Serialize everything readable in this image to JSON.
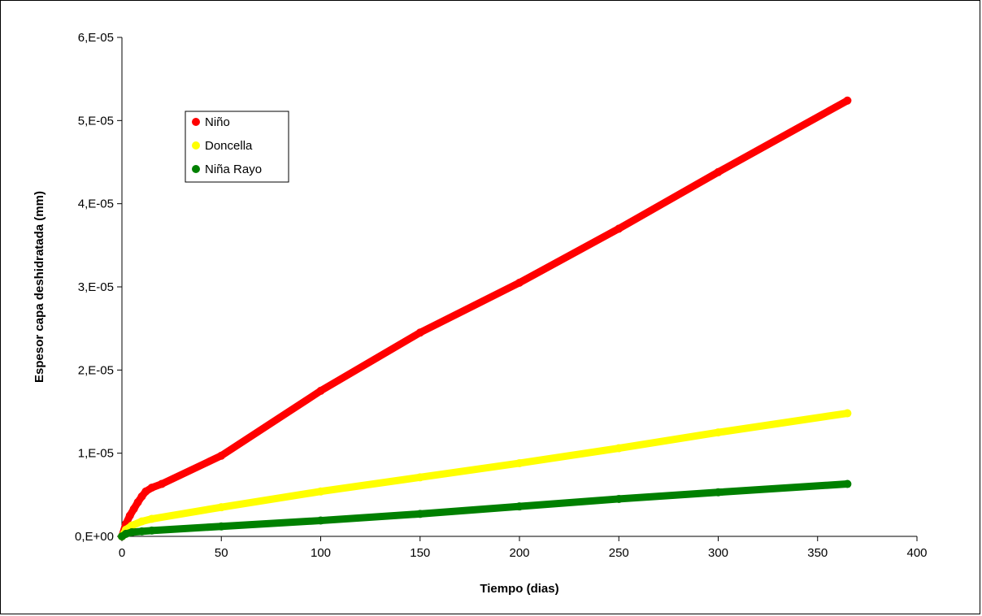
{
  "chart_data": {
    "type": "scatter",
    "title": "",
    "xlabel": "Tiempo (dias)",
    "ylabel": "Espesor capa deshidratada (mm)",
    "xlim": [
      0,
      400
    ],
    "ylim": [
      0,
      6e-05
    ],
    "x_ticks": [
      0,
      50,
      100,
      150,
      200,
      250,
      300,
      350,
      400
    ],
    "x_tick_labels": [
      "0",
      "50",
      "100",
      "150",
      "200",
      "250",
      "300",
      "350",
      "400"
    ],
    "y_ticks": [
      0,
      1e-05,
      2e-05,
      3e-05,
      4e-05,
      5e-05,
      6e-05
    ],
    "y_tick_labels": [
      "0,E+00",
      "1,E-05",
      "2,E-05",
      "3,E-05",
      "4,E-05",
      "5,E-05",
      "6,E-05"
    ],
    "grid": false,
    "legend_position": "top-left",
    "series": [
      {
        "name": "Niño",
        "color": "#ff0000",
        "x": [
          0,
          2,
          4,
          6,
          8,
          10,
          12,
          15,
          20,
          50,
          100,
          150,
          200,
          250,
          300,
          365
        ],
        "y": [
          0,
          1.5e-06,
          2.5e-06,
          3.3e-06,
          4.1e-06,
          4.8e-06,
          5.4e-06,
          5.85e-06,
          6.3e-06,
          9.7e-06,
          1.75e-05,
          2.45e-05,
          3.05e-05,
          3.7e-05,
          4.38e-05,
          5.24e-05
        ]
      },
      {
        "name": "Doncella",
        "color": "#ffff00",
        "x": [
          0,
          2,
          5,
          10,
          15,
          50,
          100,
          150,
          200,
          250,
          300,
          365
        ],
        "y": [
          0,
          8e-07,
          1.3e-06,
          1.8e-06,
          2.1e-06,
          3.5e-06,
          5.4e-06,
          7.1e-06,
          8.8e-06,
          1.06e-05,
          1.25e-05,
          1.48e-05
        ]
      },
      {
        "name": "Niña Rayo",
        "color": "#008000",
        "x": [
          0,
          2,
          5,
          10,
          15,
          50,
          100,
          150,
          200,
          250,
          300,
          365
        ],
        "y": [
          0,
          3e-07,
          5e-07,
          6e-07,
          7e-07,
          1.2e-06,
          1.9e-06,
          2.7e-06,
          3.6e-06,
          4.5e-06,
          5.3e-06,
          6.3e-06
        ]
      }
    ]
  }
}
